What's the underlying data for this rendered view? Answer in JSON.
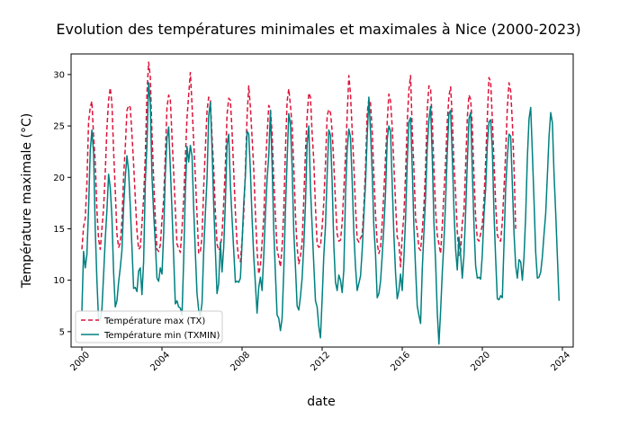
{
  "chart_data": {
    "type": "line",
    "title": "Evolution des températures minimales et maximales à Nice (2000-2023)",
    "xlabel": "date",
    "ylabel": "Température maximale (°C)",
    "xlim": [
      2000,
      2024
    ],
    "ylim": [
      3.5,
      32.0
    ],
    "x_ticks": [
      2000,
      2004,
      2008,
      2012,
      2016,
      2020,
      2024
    ],
    "x_tick_labels": [
      "2000",
      "2004",
      "2008",
      "2012",
      "2016",
      "2020",
      "2024"
    ],
    "y_ticks": [
      5,
      10,
      15,
      20,
      25,
      30
    ],
    "y_tick_labels": [
      "5",
      "10",
      "15",
      "20",
      "25",
      "30"
    ],
    "legend_position": "lower-left",
    "x_start": 2000.0,
    "x_step": 0.083333,
    "series": [
      {
        "name": "Température max (TX)",
        "color": "#dc143c",
        "linestyle": "dashed",
        "values": [
          13.0,
          15.2,
          16.0,
          19.4,
          25.4,
          26.8,
          27.4,
          24.0,
          21.5,
          16.8,
          14.0,
          13.0,
          15.0,
          17.0,
          20.5,
          24.8,
          27.5,
          28.7,
          27.2,
          22.6,
          18.7,
          14.5,
          13.2,
          13.6,
          15.8,
          20.1,
          22.9,
          26.5,
          27.0,
          26.8,
          24.2,
          21.3,
          18.0,
          14.8,
          13.0,
          13.2,
          15.5,
          18.0,
          22.1,
          28.2,
          31.2,
          29.8,
          24.3,
          19.8,
          16.0,
          13.0,
          12.8,
          13.4,
          15.9,
          17.8,
          22.2,
          26.8,
          28.0,
          27.6,
          24.0,
          20.5,
          16.9,
          13.5,
          13.1,
          12.7,
          15.0,
          17.9,
          21.9,
          25.8,
          28.0,
          30.2,
          27.1,
          23.5,
          20.1,
          16.4,
          12.6,
          12.8,
          14.2,
          19.0,
          22.8,
          26.5,
          27.8,
          27.6,
          24.0,
          20.9,
          16.7,
          13.5,
          12.9,
          13.2,
          14.5,
          17.5,
          21.2,
          26.1,
          27.7,
          27.5,
          24.5,
          20.6,
          16.6,
          13.6,
          12.0,
          11.8,
          13.9,
          16.4,
          20.7,
          25.9,
          28.9,
          26.8,
          23.9,
          20.8,
          16.5,
          12.9,
          10.6,
          11.4,
          13.7,
          16.1,
          20.8,
          24.1,
          27.0,
          26.7,
          24.3,
          19.8,
          16.2,
          13.0,
          12.2,
          11.3,
          13.2,
          16.8,
          22.6,
          27.4,
          28.6,
          27.0,
          25.0,
          21.0,
          16.4,
          13.2,
          11.6,
          12.3,
          13.7,
          17.8,
          22.5,
          25.9,
          28.2,
          27.8,
          24.3,
          21.6,
          17.1,
          13.5,
          13.2,
          13.3,
          15.2,
          17.6,
          21.4,
          26.0,
          26.6,
          26.3,
          24.5,
          21.3,
          17.6,
          14.5,
          13.8,
          13.9,
          15.6,
          18.8,
          22.1,
          26.0,
          29.9,
          28.1,
          24.6,
          21.1,
          17.1,
          14.0,
          13.7,
          14.1,
          14.4,
          17.1,
          21.0,
          26.3,
          27.6,
          27.2,
          24.5,
          20.2,
          16.4,
          13.6,
          12.6,
          13.2,
          15.6,
          18.6,
          22.0,
          25.4,
          28.1,
          27.4,
          24.9,
          21.2,
          17.5,
          14.2,
          13.7,
          11.3,
          14.4,
          16.3,
          20.4,
          25.4,
          28.5,
          29.9,
          24.6,
          20.9,
          16.0,
          14.8,
          13.1,
          12.9,
          14.8,
          17.2,
          21.0,
          26.6,
          28.9,
          28.6,
          25.5,
          21.0,
          16.8,
          14.4,
          13.5,
          12.6,
          15.3,
          18.5,
          21.5,
          25.4,
          27.9,
          28.8,
          25.8,
          21.3,
          18.4,
          14.8,
          12.4,
          12.8,
          15.6,
          16.7,
          21.1,
          25.8,
          28.0,
          27.6,
          25.0,
          20.2,
          16.1,
          14.0,
          13.8,
          14.5,
          15.4,
          17.8,
          21.6,
          25.8,
          29.7,
          29.3,
          25.7,
          21.6,
          17.4,
          14.4,
          13.9,
          13.8,
          15.7,
          18.9,
          22.4,
          26.8,
          29.2,
          28.4,
          25.4,
          21.0,
          15.0
        ]
      },
      {
        "name": "Température min (TXMIN)",
        "color": "#008080",
        "linestyle": "solid",
        "values": [
          7.0,
          12.8,
          11.2,
          12.5,
          17.0,
          22.6,
          24.6,
          22.4,
          15.0,
          10.0,
          6.1,
          6.3,
          7.2,
          10.5,
          14.0,
          16.8,
          20.3,
          19.0,
          16.1,
          10.8,
          7.4,
          8.0,
          9.8,
          11.2,
          12.9,
          17.2,
          20.0,
          22.1,
          20.6,
          17.2,
          13.2,
          9.2,
          9.3,
          8.9,
          10.9,
          11.2,
          8.6,
          11.8,
          19.5,
          23.2,
          29.2,
          27.3,
          20.1,
          16.5,
          13.6,
          10.2,
          9.9,
          11.2,
          10.6,
          14.5,
          20.3,
          23.8,
          24.9,
          21.0,
          16.8,
          12.3,
          7.7,
          8.0,
          7.4,
          7.3,
          6.6,
          11.9,
          18.6,
          23.0,
          21.5,
          23.1,
          22.1,
          17.0,
          12.7,
          8.7,
          7.1,
          6.5,
          7.8,
          12.8,
          16.5,
          19.9,
          26.0,
          27.3,
          22.8,
          17.3,
          12.9,
          8.7,
          9.7,
          13.7,
          10.8,
          13.2,
          17.6,
          23.2,
          24.2,
          19.3,
          16.0,
          12.9,
          9.8,
          9.9,
          9.8,
          10.2,
          13.6,
          17.5,
          20.1,
          24.5,
          24.2,
          20.6,
          16.0,
          12.3,
          9.6,
          6.8,
          9.3,
          10.3,
          9.0,
          12.4,
          16.4,
          19.8,
          22.1,
          26.5,
          21.3,
          14.9,
          10.6,
          6.6,
          6.3,
          5.1,
          6.3,
          10.9,
          16.8,
          21.7,
          26.2,
          25.2,
          21.0,
          14.7,
          11.3,
          7.5,
          7.1,
          8.4,
          10.2,
          13.4,
          17.4,
          23.3,
          25.0,
          19.0,
          15.2,
          11.5,
          8.0,
          7.4,
          5.5,
          4.4,
          8.2,
          12.4,
          15.3,
          20.3,
          24.6,
          24.1,
          19.5,
          13.4,
          9.8,
          9.0,
          10.5,
          10.0,
          8.8,
          11.0,
          18.3,
          22.7,
          24.7,
          23.9,
          19.6,
          14.6,
          11.3,
          9.0,
          9.7,
          10.4,
          12.9,
          16.3,
          19.4,
          24.0,
          27.8,
          24.5,
          20.4,
          15.2,
          12.5,
          8.3,
          8.7,
          9.9,
          12.4,
          15.2,
          18.5,
          23.7,
          25.0,
          24.5,
          19.3,
          14.4,
          10.7,
          8.2,
          9.0,
          10.6,
          9.0,
          12.2,
          16.0,
          21.5,
          25.4,
          25.8,
          20.9,
          15.2,
          11.1,
          7.5,
          6.6,
          5.8,
          11.0,
          14.7,
          18.1,
          22.9,
          25.6,
          26.9,
          21.9,
          15.6,
          11.8,
          6.9,
          3.8,
          7.0,
          10.7,
          13.8,
          17.7,
          22.5,
          26.2,
          26.5,
          22.0,
          16.9,
          13.0,
          11.0,
          14.2,
          12.5,
          10.2,
          12.4,
          16.6,
          21.4,
          25.7,
          26.3,
          20.6,
          15.4,
          11.4,
          10.2,
          10.3,
          10.1,
          12.5,
          16.4,
          18.9,
          23.2,
          25.4,
          25.6,
          22.7,
          16.5,
          12.1,
          8.2,
          8.1,
          8.5,
          8.3,
          13.5,
          19.0,
          22.0,
          24.2,
          24.0,
          19.3,
          14.6,
          11.4,
          10.2,
          12.0,
          11.8,
          10.0,
          12.3,
          16.3,
          21.9,
          25.7,
          26.8,
          22.4,
          17.7,
          12.7,
          10.2,
          10.3,
          10.8,
          12.3,
          14.5,
          16.5,
          20.2,
          24.0,
          26.3,
          25.3,
          20.3,
          16.5,
          12.3,
          8.0
        ]
      }
    ]
  }
}
